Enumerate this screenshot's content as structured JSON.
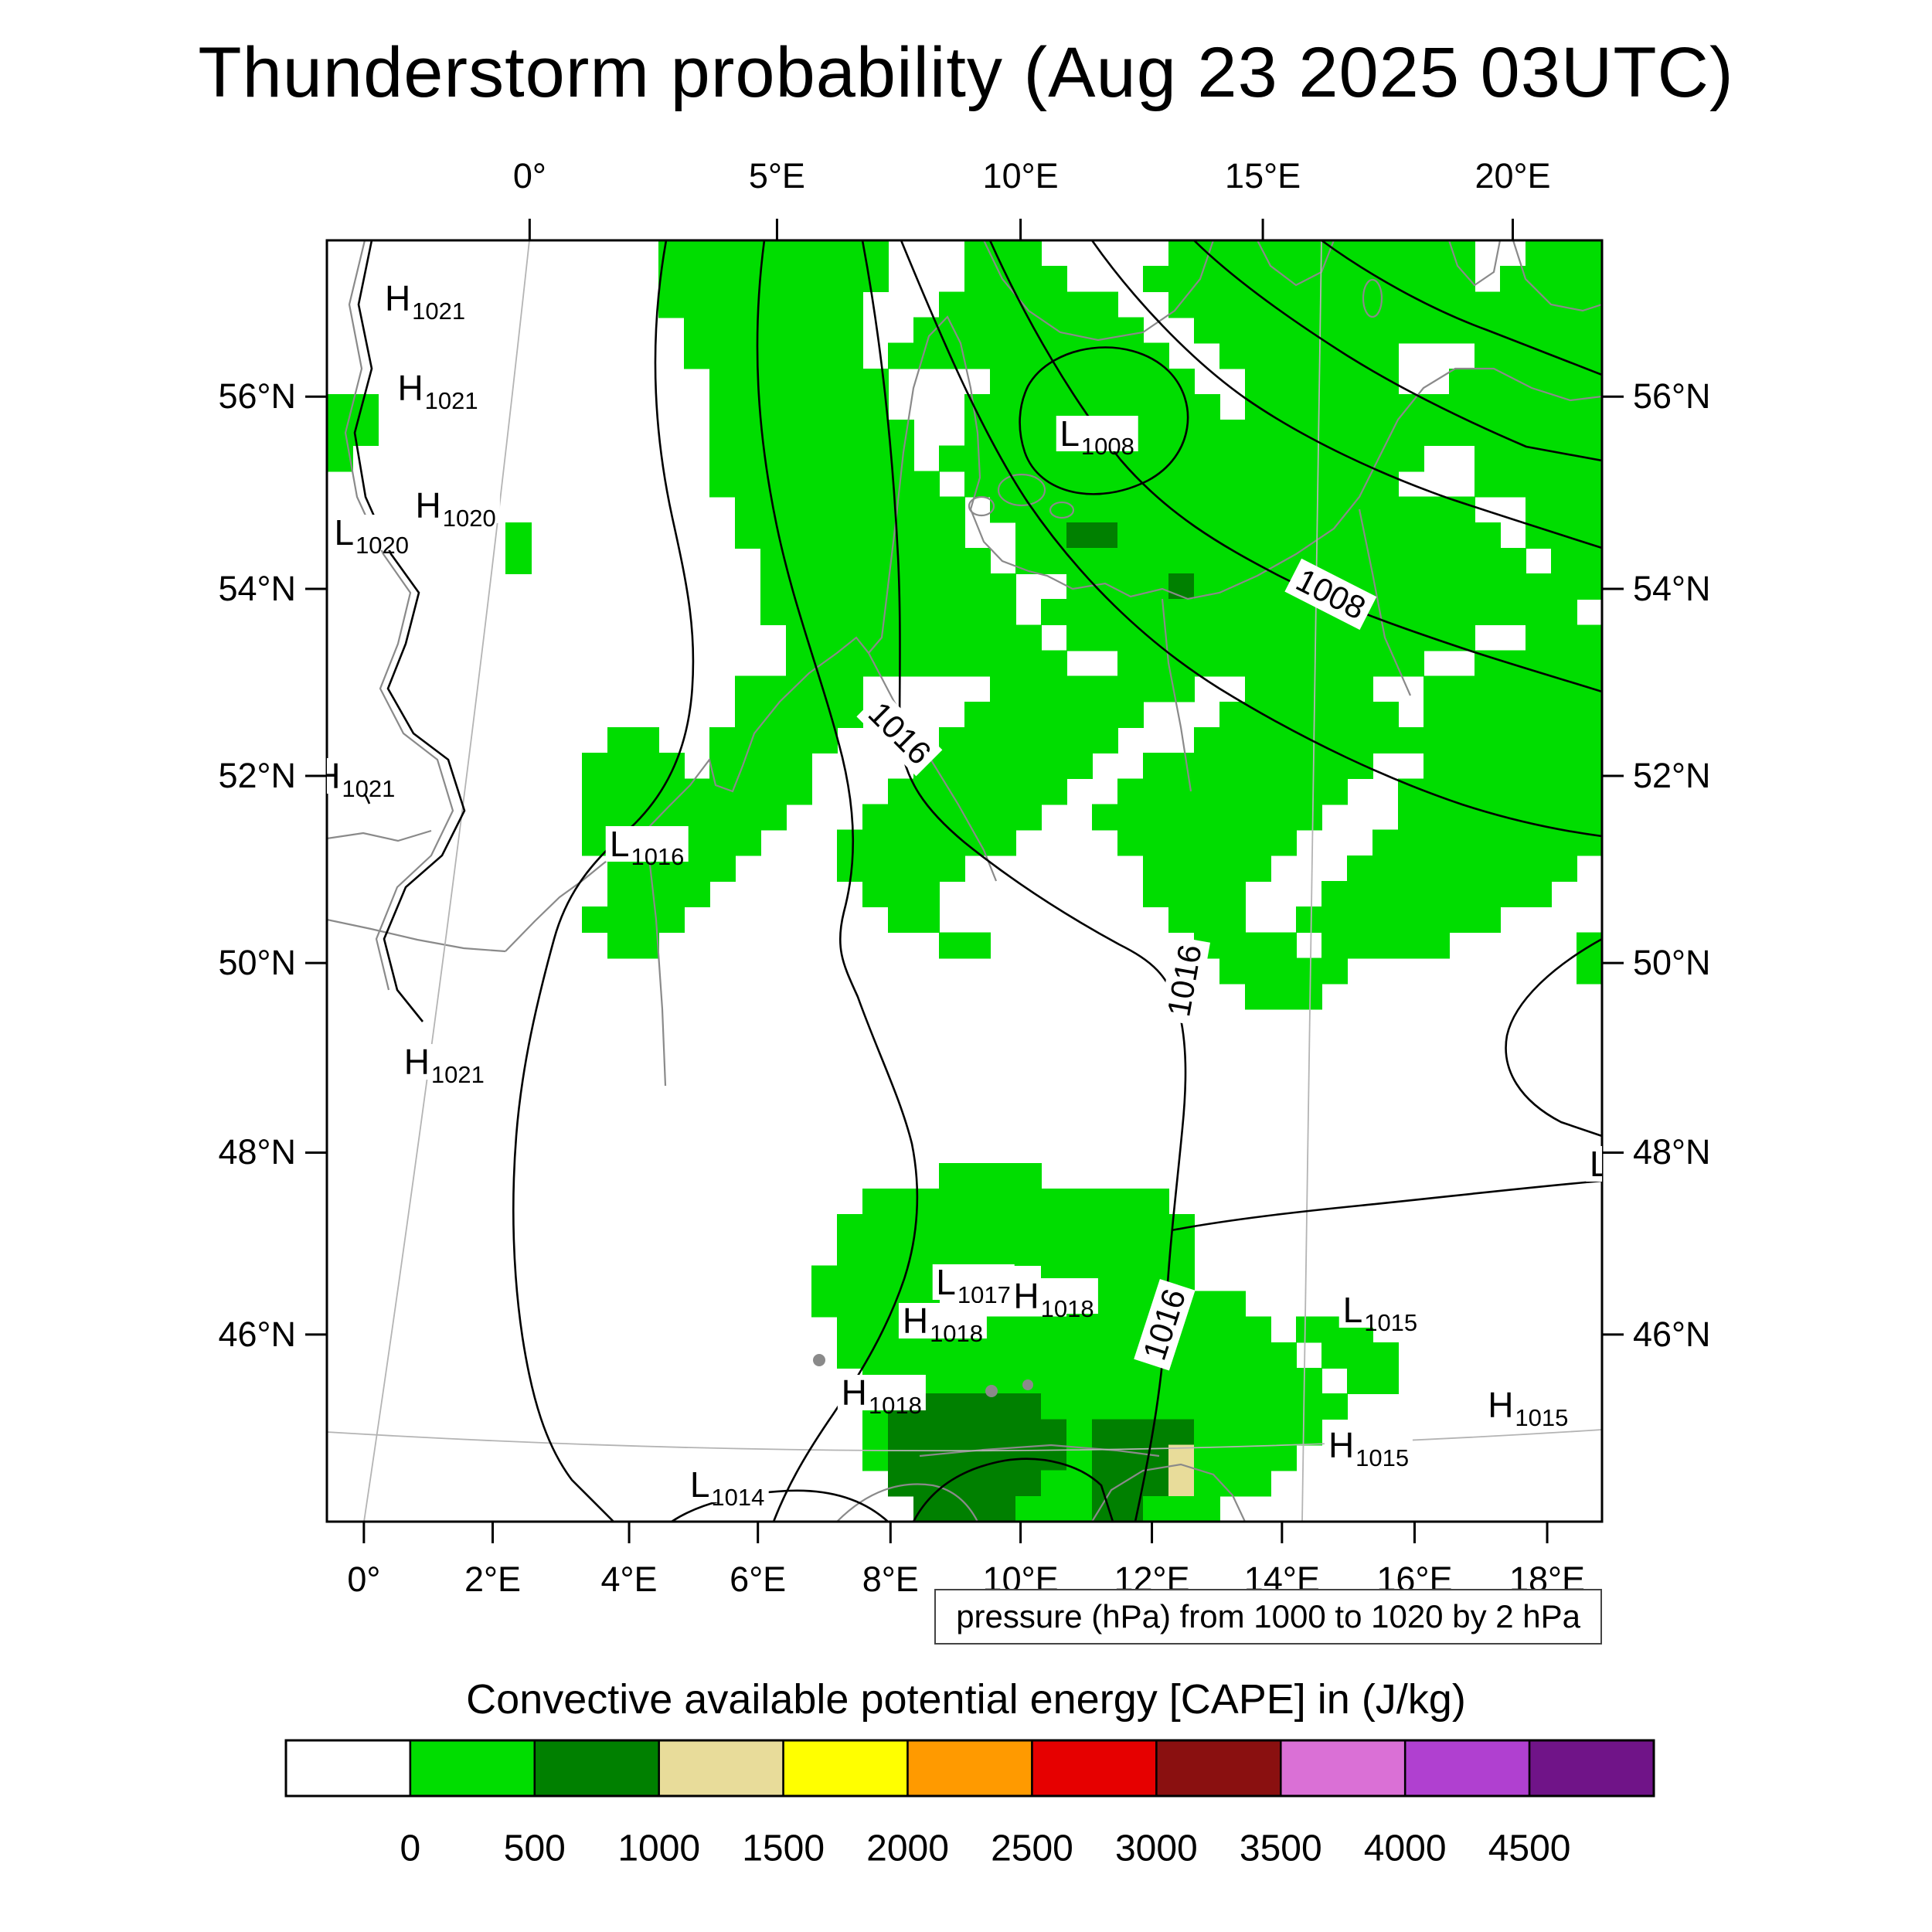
{
  "title": "Thunderstorm probability (Aug 23 2025 03UTC)",
  "axes": {
    "top": [
      {
        "label": "0°",
        "f": 0.159
      },
      {
        "label": "5°E",
        "f": 0.353
      },
      {
        "label": "10°E",
        "f": 0.544
      },
      {
        "label": "15°E",
        "f": 0.734
      },
      {
        "label": "20°E",
        "f": 0.93
      }
    ],
    "bottom": [
      {
        "label": "0°",
        "f": 0.029
      },
      {
        "label": "2°E",
        "f": 0.13
      },
      {
        "label": "4°E",
        "f": 0.237
      },
      {
        "label": "6°E",
        "f": 0.338
      },
      {
        "label": "8°E",
        "f": 0.442
      },
      {
        "label": "10°E",
        "f": 0.544
      },
      {
        "label": "12°E",
        "f": 0.647
      },
      {
        "label": "14°E",
        "f": 0.749
      },
      {
        "label": "16°E",
        "f": 0.853
      },
      {
        "label": "18°E",
        "f": 0.957
      }
    ],
    "left": [
      {
        "label": "56°N",
        "f": 0.122
      },
      {
        "label": "54°N",
        "f": 0.272
      },
      {
        "label": "52°N",
        "f": 0.418
      },
      {
        "label": "50°N",
        "f": 0.564
      },
      {
        "label": "48°N",
        "f": 0.712
      },
      {
        "label": "46°N",
        "f": 0.854
      }
    ],
    "right": [
      {
        "label": "56°N",
        "f": 0.122
      },
      {
        "label": "54°N",
        "f": 0.272
      },
      {
        "label": "52°N",
        "f": 0.418
      },
      {
        "label": "50°N",
        "f": 0.564
      },
      {
        "label": "48°N",
        "f": 0.712
      },
      {
        "label": "46°N",
        "f": 0.854
      }
    ]
  },
  "pressure_markers": [
    {
      "letter": "H",
      "value": "1021",
      "fx": 0.077,
      "fy": 0.045
    },
    {
      "letter": "H",
      "value": "1021",
      "fx": 0.087,
      "fy": 0.115
    },
    {
      "letter": "H",
      "value": "1020",
      "fx": 0.101,
      "fy": 0.207
    },
    {
      "letter": "L",
      "value": "1020",
      "fx": 0.035,
      "fy": 0.228
    },
    {
      "letter": "L",
      "value": "1008",
      "fx": 0.604,
      "fy": 0.151
    },
    {
      "letter": "H",
      "value": "1021",
      "fx": 0.022,
      "fy": 0.418
    },
    {
      "letter": "L",
      "value": "1016",
      "fx": 0.251,
      "fy": 0.471
    },
    {
      "letter": "H",
      "value": "1021",
      "fx": 0.092,
      "fy": 0.641
    },
    {
      "letter": "L",
      "value": "1017",
      "fx": 0.507,
      "fy": 0.813
    },
    {
      "letter": "H",
      "value": "1018",
      "fx": 0.57,
      "fy": 0.824
    },
    {
      "letter": "H",
      "value": "1018",
      "fx": 0.483,
      "fy": 0.843
    },
    {
      "letter": "L",
      "value": "1015",
      "fx": 0.826,
      "fy": 0.835
    },
    {
      "letter": "H",
      "value": "1018",
      "fx": 0.435,
      "fy": 0.899
    },
    {
      "letter": "H",
      "value": "1015",
      "fx": 0.942,
      "fy": 0.909
    },
    {
      "letter": "H",
      "value": "1015",
      "fx": 0.817,
      "fy": 0.94
    },
    {
      "letter": "L",
      "value": "1014",
      "fx": 0.314,
      "fy": 0.971
    },
    {
      "letter": "L",
      "value": "",
      "fx": 0.998,
      "fy": 0.721
    }
  ],
  "contour_labels": [
    {
      "text": "1016",
      "fx": 0.449,
      "fy": 0.385,
      "rot": 45
    },
    {
      "text": "1008",
      "fx": 0.787,
      "fy": 0.276,
      "rot": 27
    },
    {
      "text": "1016",
      "fx": 0.673,
      "fy": 0.578,
      "rot": -80
    },
    {
      "text": "1016",
      "fx": 0.657,
      "fy": 0.846,
      "rot": -72
    }
  ],
  "caption": "pressure (hPa) from 1000 to 1020 by 2 hPa",
  "colorbar": {
    "title": "Convective available potential energy [CAPE] in (J/kg)",
    "colors": [
      "#ffffff",
      "#00dd00",
      "#008000",
      "#e8dc9a",
      "#ffff00",
      "#ff9a00",
      "#e60000",
      "#8a1010",
      "#da70d6",
      "#b040d0",
      "#701488"
    ],
    "tick_labels": [
      "0",
      "500",
      "1000",
      "1500",
      "2000",
      "2500",
      "3000",
      "3500",
      "4000",
      "4500"
    ]
  },
  "chart_data": {
    "type": "heatmap",
    "title": "Thunderstorm probability (Aug 23 2025 03UTC)",
    "field": "Convective available potential energy [CAPE] in (J/kg)",
    "colorbar_bounds": [
      0,
      500,
      1000,
      1500,
      2000,
      2500,
      3000,
      3500,
      4000,
      4500
    ],
    "isobar_labels_hpa": [
      1008,
      1016
    ],
    "pressure_note": "pressure (hPa) from 1000 to 1020 by 2 hPa",
    "lon_ticks_deg_e": [
      0,
      2,
      4,
      6,
      8,
      10,
      12,
      14,
      16,
      18,
      20
    ],
    "lat_ticks_deg_n": [
      46,
      48,
      50,
      52,
      54,
      56
    ],
    "cape_grid": {
      "legend": {
        ".": "none (white)",
        "g": "0-500 J/kg (green)",
        "d": "500-1000 J/kg (dark green)",
        "t": "1000-1500 J/kg (tan)"
      },
      "rows": [
        ".............ggggggggg...ggg.....gggggggggggg..ggg",
        ".............ggggggggg...gggg...ggggggggggggg.gggg",
        ".............gggggggg...ggggggg..ggggggggggggggggg",
        "..............ggggggg..ggggggggg..gggggggggggggggg",
        "..............ggggggg.ggggggggggg..ggggggg...ggggg",
        "...............ggggggg....gggggggg..gggggg..gggggg",
        "gg.............ggggggg...gggggggggg.gggggggggggggg",
        "gg.............gggggggg..ggggggggggggggggggggggggg",
        "g..............gggggggg.ggggggggggggggggggg..ggggg",
        "...............ggggggggg.ggggggggggggggggg...ggggg",
        "................ggggggggg.ggggggggggggggggggg..ggg",
        ".......g........ggggggggg..ggddggggggggggggggg.ggg",
        ".......g.........ggggggggg.gggggggggggggggggggg.gg",
        ".................gggggggggg..ggggdgggggggggggggggg",
        ".................gggggggggg.ggggggggggggggggggggg.",
        "..................gggggggggg.gggggggggggggggg..ggg",
        "..................ggggggggggg..gggggggggggg..ggggg",
        "................ggggg.....gggggggg..ggggg..ggggggg",
        "................ggggg....ggggggg...ggggggg.ggggggg",
        "...........gg..ggggg....ggggggg...gggggggggggggggg",
        "..........gggg.gggg....ggggggg..ggggggggg..ggggggg",
        "..........ggggggggg...ggggggg..ggggggggg..gggggggg",
        "..........gggggggg...ggggggg..ggggggggg...gggggggg",
        "..........ggggggg...ggggggg....ggggggg...ggggggggg",
        "...........ggggg....ggggg.......ggggg...ggggggggg.",
        "...........gggg......ggg........gggg...ggggggggg..",
        "..........gggg........gg.........ggg..gggggggg....",
        "...........gg...........gg........gggg.ggggg.....g",
        "...................................ggggg.........g",
        "....................................ggg...........",
        "..................................................",
        "..................................................",
        "..................................................",
        "..................................................",
        "..................................................",
        "..................................................",
        "........................gggg......................",
        ".....................gggggggggggg.................",
        "....................gggggggggggggg................",
        "....................gggggggggggggg................",
        "...................gggggg...gggggg................",
        "...................ggggg.....ggggggg..............",
        "....................ggggggggggggggggg.ggg.........",
        "....................gggggggggggggggggg.ggg........",
        ".....................gggggggggggggggggg.gg........",
        ".....................gddddddgggggggggggg..........",
        ".....................gdddddddgddddggggg...........",
        ".....................gdddddddgdddtgggg............",
        "......................ddddddggdddtggg.............",
        ".......................ddddgggddggg..............."
      ]
    }
  }
}
